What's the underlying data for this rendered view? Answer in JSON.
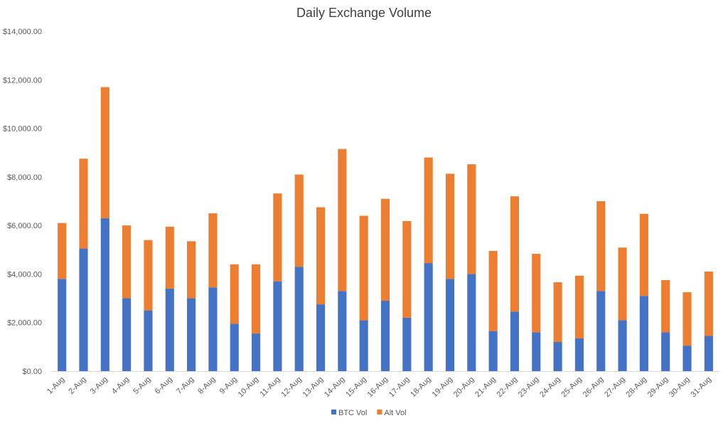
{
  "chart_data": {
    "type": "bar",
    "stacked": true,
    "title": "Daily Exchange Volume",
    "xlabel": "",
    "ylabel": "",
    "ylim": [
      0,
      14000
    ],
    "y_ticks": [
      "$0.00",
      "$2,000.00",
      "$4,000.00",
      "$6,000.00",
      "$8,000.00",
      "$10,000.00",
      "$12,000.00",
      "$14,000.00"
    ],
    "categories": [
      "1-Aug",
      "2-Aug",
      "3-Aug",
      "4-Aug",
      "5-Aug",
      "6-Aug",
      "7-Aug",
      "8-Aug",
      "9-Aug",
      "10-Aug",
      "11-Aug",
      "12-Aug",
      "13-Aug",
      "14-Aug",
      "15-Aug",
      "16-Aug",
      "17-Aug",
      "18-Aug",
      "19-Aug",
      "20-Aug",
      "21-Aug",
      "22-Aug",
      "23-Aug",
      "24-Aug",
      "25-Aug",
      "26-Aug",
      "27-Aug",
      "28-Aug",
      "29-Aug",
      "30-Aug",
      "31-Aug"
    ],
    "series": [
      {
        "name": "BTC Vol",
        "color": "#4472C4",
        "values": [
          3800,
          5050,
          6300,
          3000,
          2500,
          3400,
          3000,
          3450,
          1950,
          1550,
          3700,
          4300,
          2750,
          3300,
          2100,
          2900,
          2200,
          4450,
          3800,
          4000,
          1650,
          2450,
          1600,
          1200,
          1350,
          3300,
          2100,
          3100,
          1600,
          1050,
          1450
        ]
      },
      {
        "name": "Alt Vol",
        "color": "#ED7D31",
        "values": [
          2300,
          3700,
          5400,
          3000,
          2900,
          2550,
          2350,
          3050,
          2450,
          2850,
          3620,
          3800,
          4000,
          5850,
          4300,
          4200,
          3980,
          4350,
          4330,
          4520,
          3300,
          4750,
          3230,
          2460,
          2580,
          3700,
          2990,
          3380,
          2150,
          2200,
          2650
        ]
      }
    ],
    "legend": "bottom",
    "grid": false
  }
}
